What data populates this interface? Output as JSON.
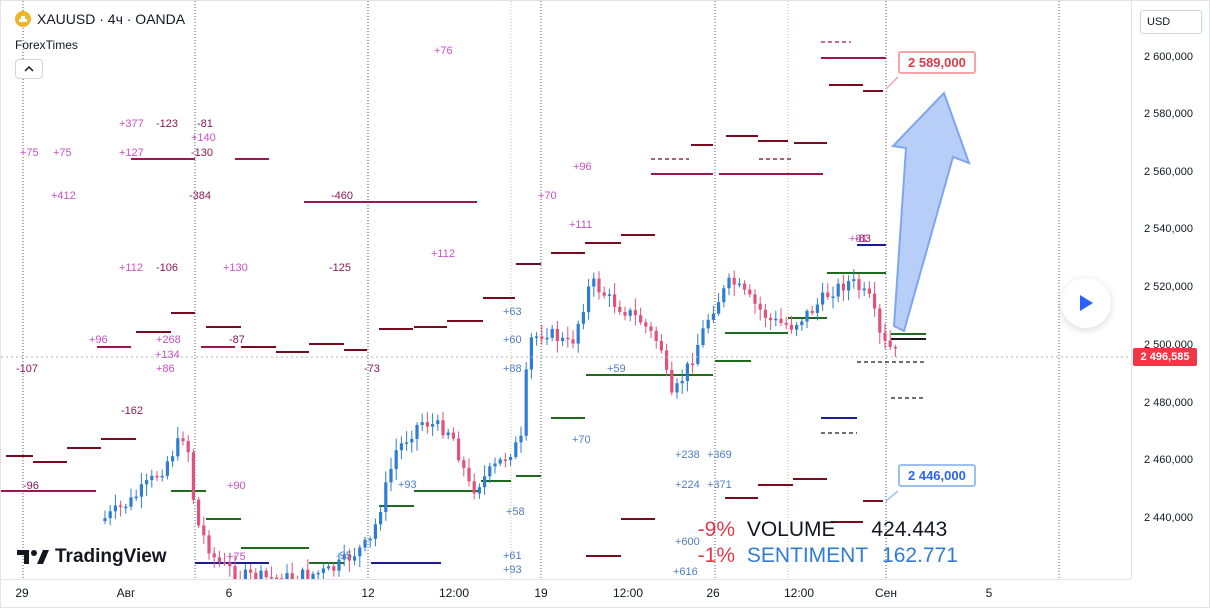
{
  "header": {
    "symbol": "XAUUSD",
    "interval": "4ч",
    "exchange": "OANDA",
    "title": "XAUUSD · 4ч · OANDA",
    "author": "ForexTimes",
    "collapse_icon": "chevron-up-icon"
  },
  "price_axis": {
    "currency": "USD",
    "ticks": [
      "2 600,000",
      "2 580,000",
      "2 560,000",
      "2 540,000",
      "2 520,000",
      "2 500,000",
      "2 480,000",
      "2 460,000",
      "2 440,000"
    ],
    "current_price": "2 496,585"
  },
  "time_axis": {
    "ticks": [
      "29",
      "Авг",
      "6",
      "12",
      "12:00",
      "19",
      "12:00",
      "26",
      "12:00",
      "Сен",
      "5"
    ]
  },
  "callouts": {
    "target_up": "2 589,000",
    "target_down": "2 446,000"
  },
  "annotations": {
    "pink": [
      "+76",
      "+377",
      "-123",
      "-81",
      "+140",
      "+75",
      "+75",
      "+127",
      "-130",
      "+96",
      "+412",
      "-384",
      "-460",
      "+70",
      "+111",
      "+112",
      "-106",
      "+130",
      "-125",
      "+112",
      "+96",
      "-87",
      "+268",
      "+134",
      "-107",
      "+86",
      "-73",
      "-162",
      "-96",
      "+90",
      "+75",
      "+81",
      "-83"
    ],
    "blue": [
      "+63",
      "+60",
      "+88",
      "+59",
      "+70",
      "+238",
      "+369",
      "+224",
      "+371",
      "+93",
      "+58",
      "+61",
      "+93",
      "+600",
      "+616",
      "-95"
    ]
  },
  "stats": {
    "volume_pct": "-9%",
    "volume_label": "VOLUME",
    "volume_value": "424.443",
    "sentiment_pct": "-1%",
    "sentiment_label": "SENTIMENT",
    "sentiment_value": "162.771"
  },
  "branding": {
    "logo_text": "TradingView"
  },
  "colors": {
    "up_candle": "#2f7cd6",
    "down_candle": "#e0527a",
    "arrow": "#8fb4f0",
    "price_tag": "#f23645"
  },
  "chart_data": {
    "type": "candlestick",
    "y_range": [
      2430,
      2610
    ],
    "current_price": 2496.585,
    "target_up": 2589,
    "target_down": 2446
  }
}
